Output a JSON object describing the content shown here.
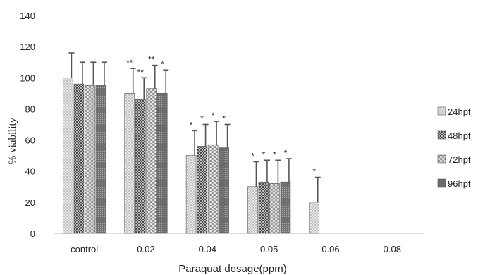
{
  "chart_data": {
    "type": "bar",
    "title": "",
    "xlabel": "Paraquat dosage(ppm)",
    "ylabel": "% viability",
    "ylim": [
      0,
      140
    ],
    "yticks": [
      0,
      20,
      40,
      60,
      80,
      100,
      120,
      140
    ],
    "grid": false,
    "legend_position": "right",
    "categories": [
      "control",
      "0.02",
      "0.04",
      "0.05",
      "0.06",
      "0.08"
    ],
    "series": [
      {
        "name": "24hpf",
        "values": [
          100,
          90,
          50,
          30,
          20,
          null
        ],
        "errors": [
          16,
          16,
          16,
          16,
          16,
          null
        ],
        "significance": [
          "",
          "**",
          "*",
          "*",
          "*",
          ""
        ]
      },
      {
        "name": "48hpf",
        "values": [
          96,
          86,
          56,
          33,
          null,
          null
        ],
        "errors": [
          14,
          14,
          14,
          14,
          null,
          null
        ],
        "significance": [
          "",
          "**",
          "*",
          "*",
          "",
          ""
        ]
      },
      {
        "name": "72hpf",
        "values": [
          95,
          93,
          57,
          32,
          null,
          null
        ],
        "errors": [
          15,
          15,
          15,
          15,
          null,
          null
        ],
        "significance": [
          "",
          "**",
          "*",
          "*",
          "",
          ""
        ]
      },
      {
        "name": "96hpf",
        "values": [
          95,
          90,
          55,
          33,
          null,
          null
        ],
        "errors": [
          15,
          15,
          15,
          15,
          null,
          null
        ],
        "significance": [
          "",
          "*",
          "*",
          "*",
          "",
          ""
        ]
      }
    ]
  }
}
